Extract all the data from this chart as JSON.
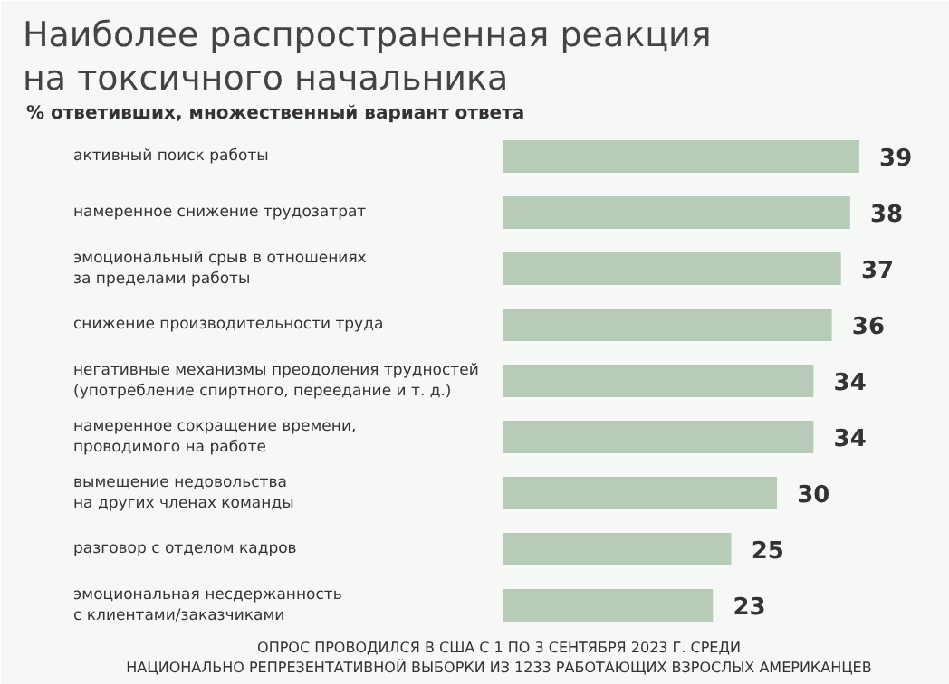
{
  "chart_data": {
    "type": "bar",
    "orientation": "horizontal",
    "title": "Наиболее распространенная реакция\nна токсичного начальника",
    "subtitle": "% ответивших, множественный вариант ответа",
    "categories": [
      "активный поиск работы",
      "намеренное снижение трудозатрат",
      "эмоциональный срыв в отношениях\nза пределами работы",
      "снижение производительности труда",
      "негативные механизмы преодоления трудностей\n(употребление спиртного, переедание и т. д.)",
      "намеренное сокращение времени,\nпроводимого на работе",
      "вымещение недовольства\nна других членах команды",
      "разговор с отделом кадров",
      "эмоциональная несдержанность\nс клиентами/заказчиками"
    ],
    "values": [
      39,
      38,
      37,
      36,
      34,
      34,
      30,
      25,
      23
    ],
    "color": "#b7cbb8",
    "data_labels": true,
    "annotations": [
      "ОПРОС ПРОВОДИЛСЯ В США С 1 ПО 3 СЕНТЯБРЯ 2023 Г. СРЕДИ\nНАЦИОНАЛЬНО РЕПРЕЗЕНТАТИВНОЙ ВЫБОРКИ ИЗ 1233 РАБОТАЮЩИХ ВЗРОСЛЫХ АМЕРИКАНЦЕВ"
    ]
  }
}
